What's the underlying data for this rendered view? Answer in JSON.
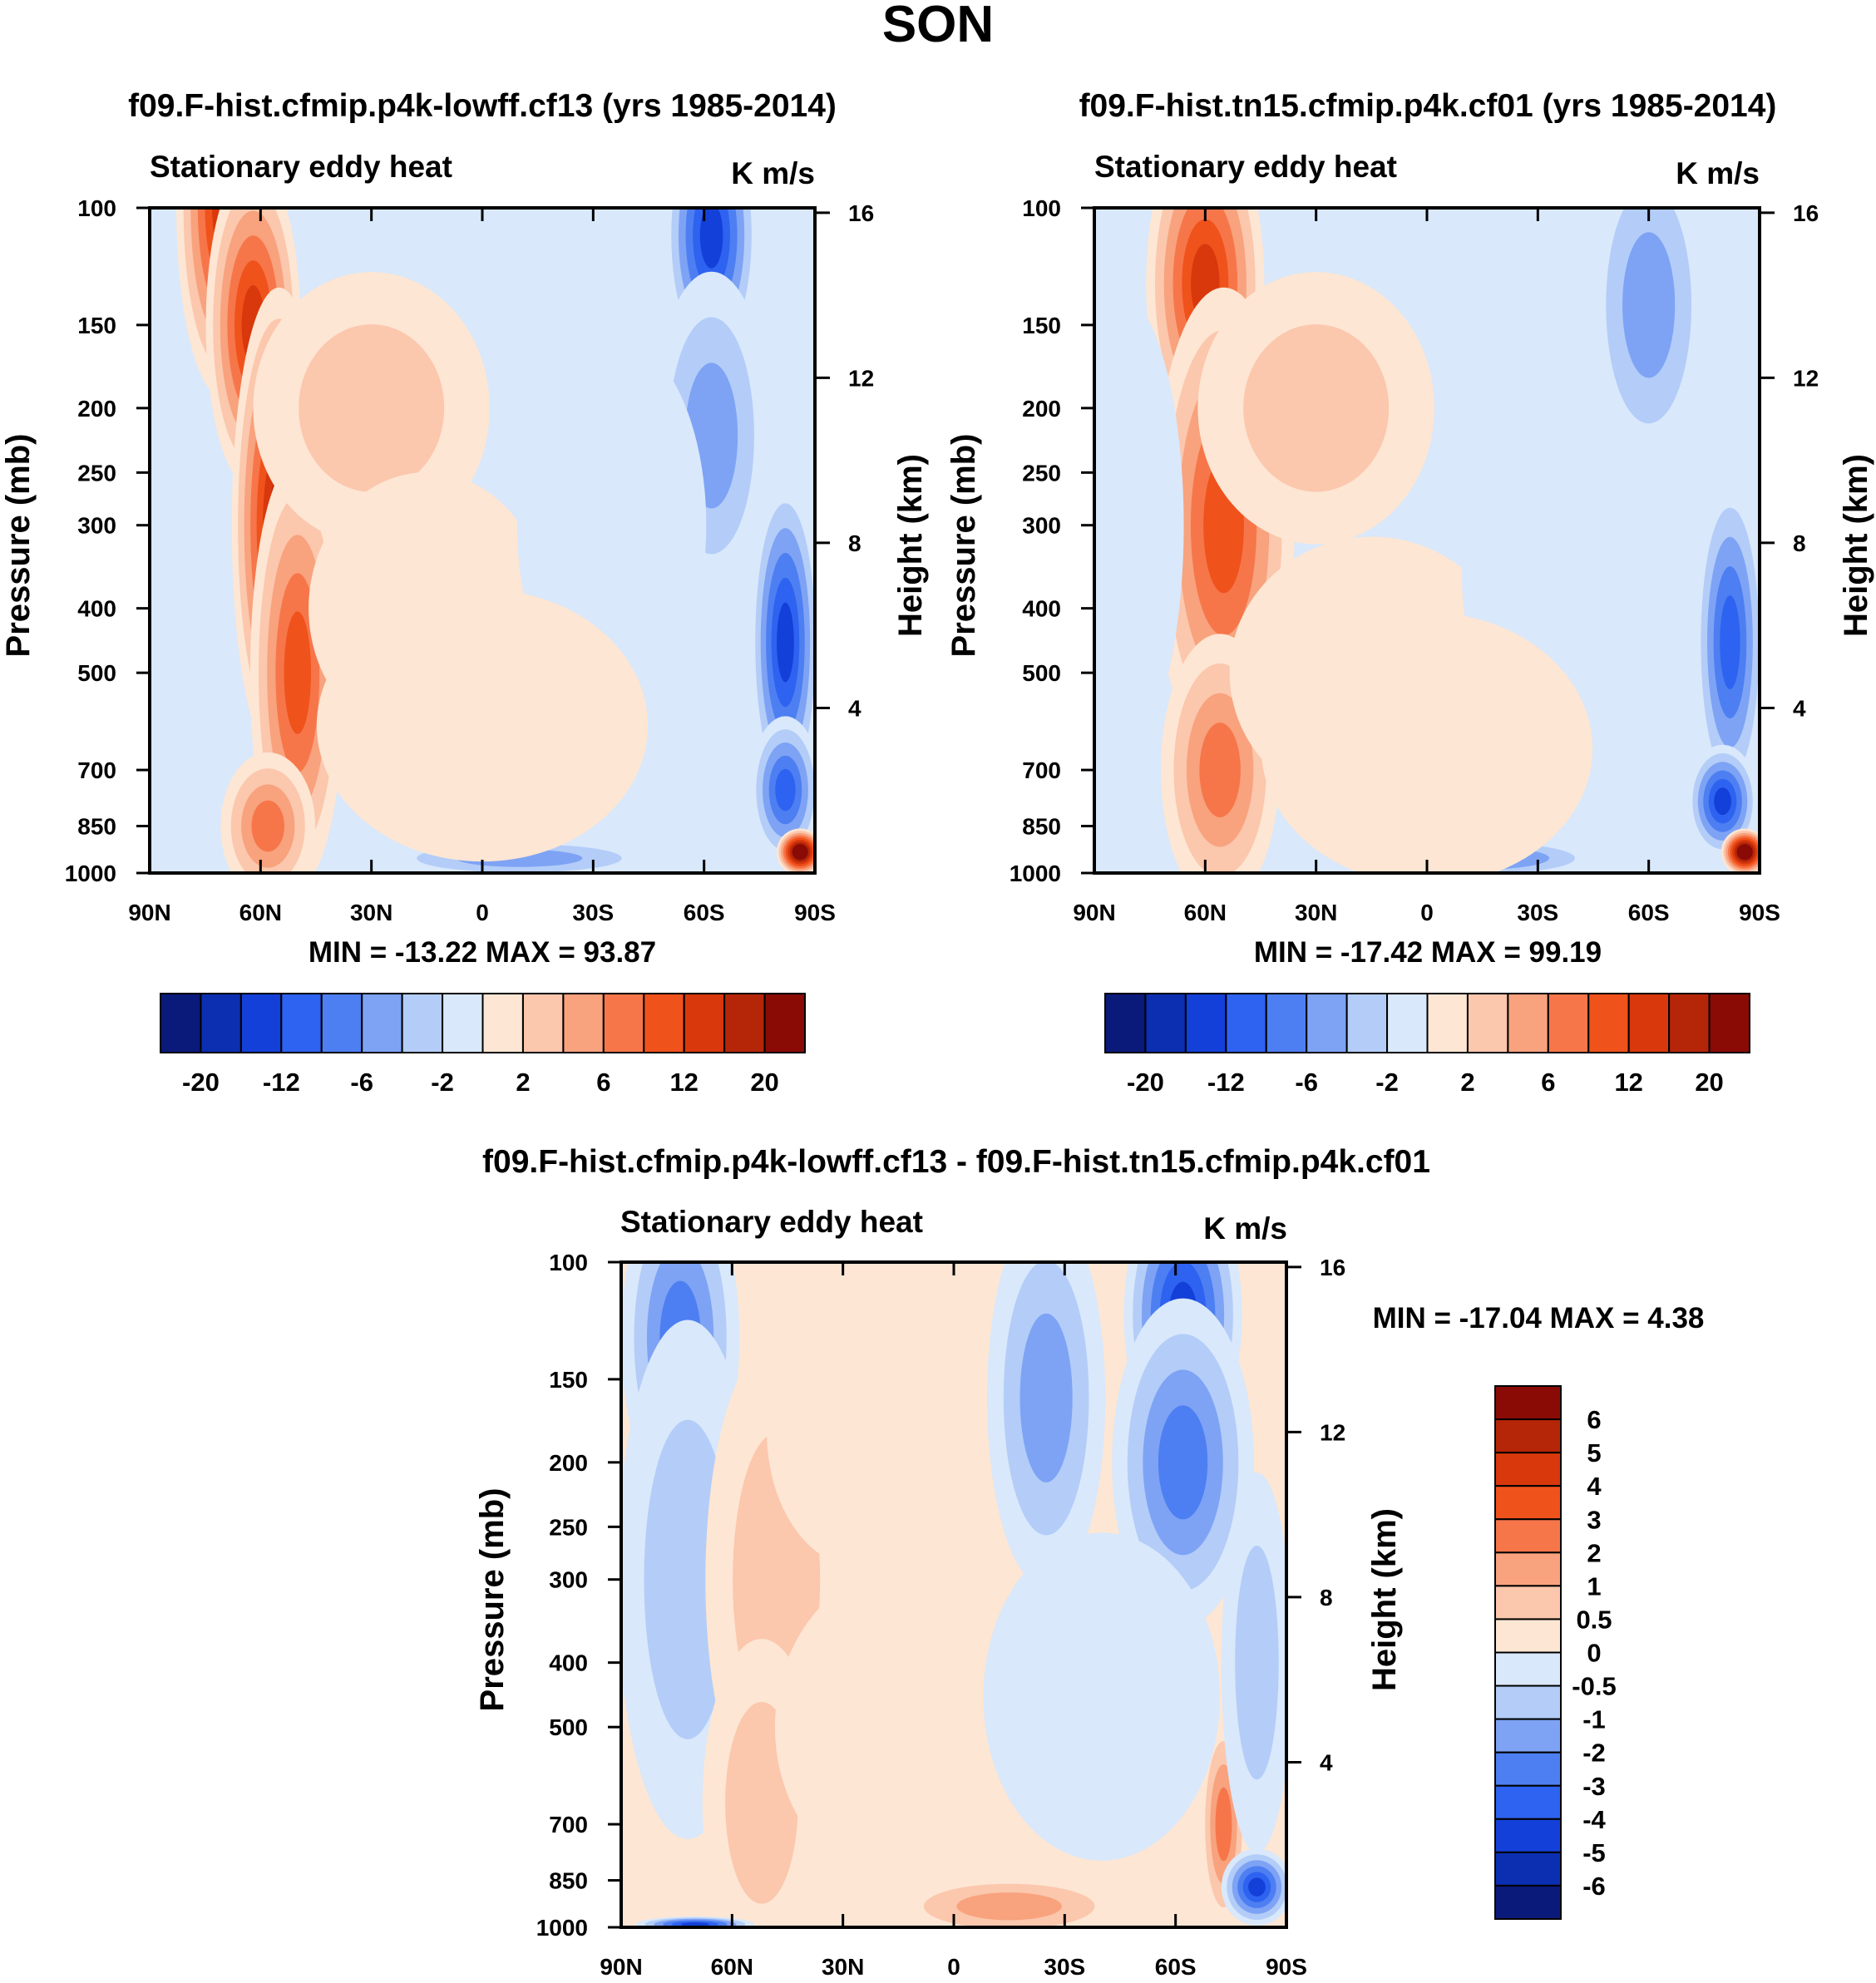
{
  "figure": {
    "title": "SON"
  },
  "colorbars": {
    "main": {
      "colors": [
        "#0a1a7a",
        "#0b2fb0",
        "#1340d8",
        "#2e62f0",
        "#4d7ff2",
        "#7ea3f5",
        "#b3cdf8",
        "#d9e8fb",
        "#fde6d3",
        "#fbc7ad",
        "#f8a27e",
        "#f6764a",
        "#f0521c",
        "#d8380c",
        "#b52609",
        "#8a0b06"
      ],
      "labels": [
        "-20",
        "-12",
        "-6",
        "-2",
        "2",
        "6",
        "12",
        "20"
      ]
    },
    "diff": {
      "colors": [
        "#8a0b06",
        "#b52609",
        "#d8380c",
        "#f0521c",
        "#f6764a",
        "#f8a27e",
        "#fbc7ad",
        "#fde6d3",
        "#d9e8fb",
        "#b3cdf8",
        "#7ea3f5",
        "#4d7ff2",
        "#2e62f0",
        "#1340d8",
        "#0b2fb0",
        "#0a1a7a"
      ],
      "labels": [
        "6",
        "5",
        "4",
        "3",
        "2",
        "1",
        "0.5",
        "0",
        "-0.5",
        "-1",
        "-2",
        "-3",
        "-4",
        "-5",
        "-6"
      ]
    }
  },
  "chart_data": [
    {
      "type": "heatmap",
      "title": "f09.F-hist.cfmip.p4k-lowff.cf13 (yrs 1985-2014)",
      "left_string": "Stationary eddy heat",
      "right_string": "K m/s",
      "ylabel": "Pressure (mb)",
      "y2label": "Height (km)",
      "x_ticks": [
        "90N",
        "60N",
        "30N",
        "0",
        "30S",
        "60S",
        "90S"
      ],
      "y_ticks": [
        100,
        150,
        200,
        250,
        300,
        400,
        500,
        700,
        850,
        1000
      ],
      "y2_ticks": [
        16,
        12,
        8,
        4
      ],
      "stats": "MIN = -13.22  MAX =  93.87",
      "field": [
        {
          "lat": 70,
          "p": 100,
          "dlat": 4,
          "dp": 1.6,
          "level": 6
        },
        {
          "lat": 62,
          "p": 150,
          "dlat": 4,
          "dp": 1.5,
          "level": 6
        },
        {
          "lat": 55,
          "p": 300,
          "dlat": 4,
          "dp": 1.8,
          "level": 7
        },
        {
          "lat": 50,
          "p": 500,
          "dlat": 4,
          "dp": 1.7,
          "level": 5
        },
        {
          "lat": 58,
          "p": 850,
          "dlat": 4,
          "dp": 1.2,
          "level": 4
        },
        {
          "lat": 30,
          "p": 200,
          "dlat": 10,
          "dp": 1.4,
          "level": 2
        },
        {
          "lat": 15,
          "p": 400,
          "dlat": 10,
          "dp": 1.4,
          "level": 1
        },
        {
          "lat": -62,
          "p": 110,
          "dlat": 4,
          "dp": 1.4,
          "level": -6
        },
        {
          "lat": -62,
          "p": 220,
          "dlat": 5,
          "dp": 1.5,
          "level": -3
        },
        {
          "lat": -82,
          "p": 450,
          "dlat": 3,
          "dp": 1.5,
          "level": -6
        },
        {
          "lat": -82,
          "p": 750,
          "dlat": 3,
          "dp": 1.2,
          "level": -5
        },
        {
          "lat": -86,
          "p": 930,
          "dlat": 2,
          "dp": 1.06,
          "level": 10
        },
        {
          "lat": -10,
          "p": 950,
          "dlat": 12,
          "dp": 1.05,
          "level": -3
        },
        {
          "lat": 88,
          "p": 400,
          "dlat": 6,
          "dp": 2.0,
          "level": -1
        },
        {
          "lat": -35,
          "p": 300,
          "dlat": 8,
          "dp": 1.6,
          "level": -1
        },
        {
          "lat": 0,
          "p": 600,
          "dlat": 14,
          "dp": 1.4,
          "level": 1
        }
      ]
    },
    {
      "type": "heatmap",
      "title": "f09.F-hist.tn15.cfmip.p4k.cf01 (yrs 1985-2014)",
      "left_string": "Stationary eddy heat",
      "right_string": "K m/s",
      "ylabel": "Pressure (mb)",
      "y2label": "Height (km)",
      "x_ticks": [
        "90N",
        "60N",
        "30N",
        "0",
        "30S",
        "60S",
        "90S"
      ],
      "y_ticks": [
        100,
        150,
        200,
        250,
        300,
        400,
        500,
        700,
        850,
        1000
      ],
      "y2_ticks": [
        16,
        12,
        8,
        4
      ],
      "stats": "MIN = -17.42  MAX =  99.19",
      "field": [
        {
          "lat": 60,
          "p": 130,
          "dlat": 5,
          "dp": 1.5,
          "level": 6
        },
        {
          "lat": 55,
          "p": 300,
          "dlat": 6,
          "dp": 1.8,
          "level": 5
        },
        {
          "lat": 56,
          "p": 700,
          "dlat": 5,
          "dp": 1.4,
          "level": 4
        },
        {
          "lat": 30,
          "p": 200,
          "dlat": 10,
          "dp": 1.4,
          "level": 2
        },
        {
          "lat": 15,
          "p": 500,
          "dlat": 12,
          "dp": 1.4,
          "level": 1
        },
        {
          "lat": -60,
          "p": 140,
          "dlat": 5,
          "dp": 1.5,
          "level": -3
        },
        {
          "lat": -82,
          "p": 450,
          "dlat": 3,
          "dp": 1.5,
          "level": -5
        },
        {
          "lat": -80,
          "p": 780,
          "dlat": 3,
          "dp": 1.15,
          "level": -6
        },
        {
          "lat": -86,
          "p": 930,
          "dlat": 2,
          "dp": 1.06,
          "level": 10
        },
        {
          "lat": -15,
          "p": 950,
          "dlat": 10,
          "dp": 1.05,
          "level": -4
        },
        {
          "lat": 85,
          "p": 300,
          "dlat": 6,
          "dp": 1.8,
          "level": -1
        },
        {
          "lat": -35,
          "p": 350,
          "dlat": 8,
          "dp": 1.6,
          "level": -1
        },
        {
          "lat": 0,
          "p": 650,
          "dlat": 14,
          "dp": 1.4,
          "level": 1
        }
      ]
    },
    {
      "type": "heatmap",
      "title": "f09.F-hist.cfmip.p4k-lowff.cf13 - f09.F-hist.tn15.cfmip.p4k.cf01",
      "left_string": "Stationary eddy heat",
      "right_string": "K m/s",
      "ylabel": "Pressure (mb)",
      "y2label": "Height (km)",
      "x_ticks": [
        "90N",
        "60N",
        "30N",
        "0",
        "30S",
        "60S",
        "90S"
      ],
      "y_ticks": [
        100,
        150,
        200,
        250,
        300,
        400,
        500,
        700,
        850,
        1000
      ],
      "y2_ticks": [
        16,
        12,
        8,
        4
      ],
      "stats": "MIN = -17.04  MAX =    4.38",
      "field": [
        {
          "lat": 74,
          "p": 130,
          "dlat": 5,
          "dp": 1.5,
          "level": -4
        },
        {
          "lat": 72,
          "p": 300,
          "dlat": 6,
          "dp": 1.9,
          "level": -2
        },
        {
          "lat": 48,
          "p": 300,
          "dlat": 6,
          "dp": 1.8,
          "level": 2
        },
        {
          "lat": 52,
          "p": 650,
          "dlat": 5,
          "dp": 1.5,
          "level": 2
        },
        {
          "lat": 25,
          "p": 180,
          "dlat": 8,
          "dp": 1.4,
          "level": 1
        },
        {
          "lat": -25,
          "p": 160,
          "dlat": 5,
          "dp": 1.6,
          "level": -3
        },
        {
          "lat": -62,
          "p": 120,
          "dlat": 5,
          "dp": 1.4,
          "level": -6
        },
        {
          "lat": -62,
          "p": 200,
          "dlat": 6,
          "dp": 1.5,
          "level": -4
        },
        {
          "lat": -15,
          "p": 930,
          "dlat": 10,
          "dp": 1.08,
          "level": 3
        },
        {
          "lat": -73,
          "p": 700,
          "dlat": 2,
          "dp": 1.3,
          "level": 4
        },
        {
          "lat": -82,
          "p": 870,
          "dlat": 3,
          "dp": 1.1,
          "level": -6
        },
        {
          "lat": -82,
          "p": 400,
          "dlat": 3,
          "dp": 1.6,
          "level": -2
        },
        {
          "lat": 70,
          "p": 990,
          "dlat": 5,
          "dp": 1.02,
          "level": -6
        },
        {
          "lat": 10,
          "p": 500,
          "dlat": 12,
          "dp": 1.5,
          "level": 1
        },
        {
          "lat": -40,
          "p": 450,
          "dlat": 10,
          "dp": 1.5,
          "level": -1
        }
      ]
    }
  ]
}
